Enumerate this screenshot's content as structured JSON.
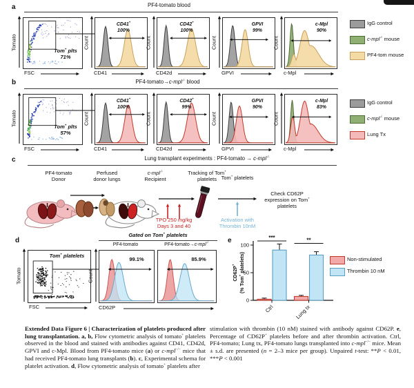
{
  "figure": {
    "panel_a": {
      "label": "a",
      "title": [
        {
          "t": "PF4-tomato blood"
        }
      ],
      "scatter": {
        "ylabel": "Tomato",
        "xlabel": "FSC",
        "gate_line1": [
          {
            "t": "Tom",
            "i": 1
          },
          {
            "t": "+",
            "i": 1,
            "sup": 1
          },
          {
            "t": " plts",
            "i": 1
          }
        ],
        "gate_line2": [
          {
            "t": "71%",
            "i": 1
          }
        ]
      },
      "count_label": "Count",
      "histograms": [
        {
          "xlabel": "CD41",
          "m1": [
            {
              "t": "CD41",
              "i": 1
            },
            {
              "t": "+",
              "i": 1,
              "sup": 1
            }
          ],
          "m2": [
            {
              "t": "100%",
              "i": 1
            }
          ]
        },
        {
          "xlabel": "CD42d",
          "m1": [
            {
              "t": "CD42",
              "i": 1
            },
            {
              "t": "+",
              "i": 1,
              "sup": 1
            }
          ],
          "m2": [
            {
              "t": "100%",
              "i": 1
            }
          ]
        },
        {
          "xlabel": "GPVI",
          "m1": [
            {
              "t": "GPVI",
              "i": 1
            }
          ],
          "m2": [
            {
              "t": "99%",
              "i": 1
            }
          ]
        },
        {
          "xlabel": "c-Mpl",
          "m1": [
            {
              "t": "c-Mpl",
              "i": 1
            }
          ],
          "m2": [
            {
              "t": "90%",
              "i": 1
            }
          ]
        }
      ],
      "legend": [
        {
          "label": [
            {
              "t": "IgG control"
            }
          ],
          "fill": "#9b9b9b",
          "stroke": "#3c3c3c"
        },
        {
          "label": [
            {
              "t": "c-mpl",
              "i": 1
            },
            {
              "t": "-/-",
              "i": 1,
              "sup": 1
            },
            {
              "t": " mouse"
            }
          ],
          "fill": "#90af72",
          "stroke": "#4c6a33"
        },
        {
          "label": [
            {
              "t": "PF4-tom mouse"
            }
          ],
          "fill": "#f4dba6",
          "stroke": "#c8a05c"
        }
      ]
    },
    "panel_b": {
      "label": "b",
      "title": [
        {
          "t": "PF4-tomato→"
        },
        {
          "t": "c-mpl",
          "i": 1
        },
        {
          "t": "-/-",
          "i": 1,
          "sup": 1
        },
        {
          "t": " blood"
        }
      ],
      "scatter": {
        "ylabel": "Tomato",
        "xlabel": "FSC",
        "gate_line1": [
          {
            "t": "Tom",
            "i": 1
          },
          {
            "t": "+",
            "i": 1,
            "sup": 1
          },
          {
            "t": " plts",
            "i": 1
          }
        ],
        "gate_line2": [
          {
            "t": "57%",
            "i": 1
          }
        ]
      },
      "count_label": "Count",
      "histograms": [
        {
          "xlabel": "CD41",
          "m1": [
            {
              "t": "CD41",
              "i": 1
            },
            {
              "t": "+",
              "i": 1,
              "sup": 1
            }
          ],
          "m2": [
            {
              "t": "100%",
              "i": 1
            }
          ]
        },
        {
          "xlabel": "CD42d",
          "m1": [
            {
              "t": "CD42",
              "i": 1
            },
            {
              "t": "+",
              "i": 1,
              "sup": 1
            }
          ],
          "m2": [
            {
              "t": "99%",
              "i": 1
            }
          ]
        },
        {
          "xlabel": "GPVI",
          "m1": [
            {
              "t": "GPVI",
              "i": 1
            }
          ],
          "m2": [
            {
              "t": "90%",
              "i": 1
            }
          ]
        },
        {
          "xlabel": "c-Mpl",
          "m1": [
            {
              "t": "c-Mpl",
              "i": 1
            }
          ],
          "m2": [
            {
              "t": "83%",
              "i": 1
            }
          ]
        }
      ],
      "legend": [
        {
          "label": [
            {
              "t": "IgG control"
            }
          ],
          "fill": "#9b9b9b",
          "stroke": "#3c3c3c"
        },
        {
          "label": [
            {
              "t": "c-mpl",
              "i": 1
            },
            {
              "t": "-/-",
              "i": 1,
              "sup": 1
            },
            {
              "t": " mouse"
            }
          ],
          "fill": "#90af72",
          "stroke": "#4c6a33"
        },
        {
          "label": [
            {
              "t": "Lung Tx"
            }
          ],
          "fill": "#f4b9b9",
          "stroke": "#c0392b"
        }
      ]
    },
    "panel_c": {
      "label": "c",
      "title": [
        {
          "t": "Lung transplant experiments : PF4-tomato → "
        },
        {
          "t": "c-mpl",
          "i": 1
        },
        {
          "t": "-/-",
          "i": 1,
          "sup": 1
        }
      ],
      "steps": [
        {
          "l1": [
            {
              "t": "PF4-tomato"
            }
          ],
          "l2": [
            {
              "t": "Donor"
            }
          ]
        },
        {
          "l1": [
            {
              "t": "Perfused"
            }
          ],
          "l2": [
            {
              "t": "donor lungs"
            }
          ]
        },
        {
          "l1": [
            {
              "t": "c-mpl",
              "i": 1
            },
            {
              "t": "-/-",
              "i": 1,
              "sup": 1
            }
          ],
          "l2": [
            {
              "t": "Recipient"
            }
          ]
        },
        {
          "l1": [
            {
              "t": "Tracking of Tom"
            },
            {
              "t": "+",
              "sup": 1
            }
          ],
          "l2": [
            {
              "t": "platelets"
            }
          ]
        },
        {
          "l1": [
            {
              "t": "Tom"
            },
            {
              "t": "+",
              "sup": 1
            },
            {
              "t": " platelets"
            }
          ],
          "l2": []
        }
      ],
      "tpo": [
        {
          "t": "TPO 250 mg/kg"
        }
      ],
      "tpo2": [
        {
          "t": "Days 3 and 40"
        }
      ],
      "act": [
        {
          "t": "Activation with"
        }
      ],
      "act2": [
        {
          "t": "Thrombin 10nM"
        }
      ],
      "check1": [
        {
          "t": "Check CD62P"
        }
      ],
      "check2": [
        {
          "t": "expression on Tom"
        },
        {
          "t": "+",
          "sup": 1
        }
      ],
      "check3": [
        {
          "t": "platelets"
        }
      ]
    },
    "panel_d": {
      "label": "d",
      "header": [
        {
          "t": "Gated on Tom",
          "b": 1,
          "i": 1
        },
        {
          "t": "+",
          "b": 1,
          "i": 1,
          "sup": 1
        },
        {
          "t": " platelets",
          "b": 1,
          "i": 1
        }
      ],
      "col1": [
        {
          "t": "PF4-tomato"
        }
      ],
      "col2": [
        {
          "t": "PF4-tomato→"
        },
        {
          "t": "c-mpl",
          "i": 1
        },
        {
          "t": "-/-",
          "i": 1,
          "sup": 1
        }
      ],
      "scatter": {
        "ylabel": "Tomato",
        "xlabel": "FSC",
        "gate": [
          {
            "t": "Tom",
            "i": 1,
            "b": 1
          },
          {
            "t": "+",
            "i": 1,
            "b": 1,
            "sup": 1
          },
          {
            "t": " platelets",
            "i": 1,
            "b": 1
          }
        ]
      },
      "count_label": "Count",
      "xlabel": "CD62P",
      "pcts": [
        "99.1%",
        "85.9%"
      ]
    },
    "panel_e_label": "e"
  },
  "chart_data": {
    "type": "bar",
    "title": "",
    "xlabel": "",
    "categories": [
      "Ctrl",
      "Lung tx"
    ],
    "series": [
      {
        "name": "Non-stimulated",
        "values": [
          2,
          7
        ],
        "errors": [
          2,
          2
        ],
        "fill": "#f2a9a9",
        "stroke": "#c0392b"
      },
      {
        "name": "Thrombin 10 nM",
        "values": [
          91,
          82
        ],
        "errors": [
          11,
          6
        ],
        "fill": "#c2e5f5",
        "stroke": "#5b9fc0"
      }
    ],
    "ylabel_line1": [
      {
        "t": "CD62P"
      },
      {
        "t": "+",
        "sup": 1
      }
    ],
    "ylabel_line2": [
      {
        "t": "(% Tom"
      },
      {
        "t": "+",
        "sup": 1
      },
      {
        "t": " platelets)"
      }
    ],
    "yticks": [
      0,
      50,
      100
    ],
    "ylim": [
      0,
      105
    ],
    "grid": false,
    "legend_position": "right",
    "significance": [
      "***",
      "**"
    ]
  },
  "caption": {
    "left": [
      {
        "t": "Extended Data Figure 6 | Characterization of platelets produced after lung transplantation. ",
        "b": 1
      },
      {
        "t": "a",
        "b": 1
      },
      {
        "t": ", ",
        "b": 1
      },
      {
        "t": "b",
        "b": 1
      },
      {
        "t": ", ",
        "b": 1
      },
      {
        "t": "Flow cytometric analysis of tomato"
      },
      {
        "t": "+",
        "sup": 1
      },
      {
        "t": " platelets observed in the blood and stained with antibodies against CD41, CD42d, GPVI and c-Mpl. Blood from PF4-tomato mice ("
      },
      {
        "t": "a",
        "b": 1
      },
      {
        "t": ") or "
      },
      {
        "t": "c-mpl",
        "i": 1
      },
      {
        "t": "−/−",
        "sup": 1
      },
      {
        "t": " mice that had received PF4-tomato lung transplants ("
      },
      {
        "t": "b",
        "b": 1
      },
      {
        "t": "). "
      },
      {
        "t": "c",
        "b": 1
      },
      {
        "t": ", Experimental schema for platelet activation. "
      },
      {
        "t": "d",
        "b": 1
      },
      {
        "t": ", Flow cytometric analysis of tomato"
      },
      {
        "t": "+",
        "sup": 1
      },
      {
        "t": " platelets after"
      }
    ],
    "right": [
      {
        "t": "stimulation with thrombin (10 nM) stained with antibody against CD62P. "
      },
      {
        "t": "e",
        "b": 1
      },
      {
        "t": ", Percentage of CD62P"
      },
      {
        "t": "+",
        "sup": 1
      },
      {
        "t": " platelets before and after thrombin activation. Ctrl, PF4-tomato; Lung tx, PF4-tomato lungs transplanted into "
      },
      {
        "t": "c-mpl",
        "i": 1
      },
      {
        "t": "−/−",
        "sup": 1
      },
      {
        "t": " mice. Mean ± s.d. are presented ("
      },
      {
        "t": "n",
        "i": 1
      },
      {
        "t": " = 2–3 mice per group). Unpaired "
      },
      {
        "t": "t",
        "i": 1
      },
      {
        "t": "-test: **"
      },
      {
        "t": "P",
        "i": 1
      },
      {
        "t": " < 0.01, ***"
      },
      {
        "t": "P",
        "i": 1
      },
      {
        "t": " < 0.001"
      }
    ]
  }
}
